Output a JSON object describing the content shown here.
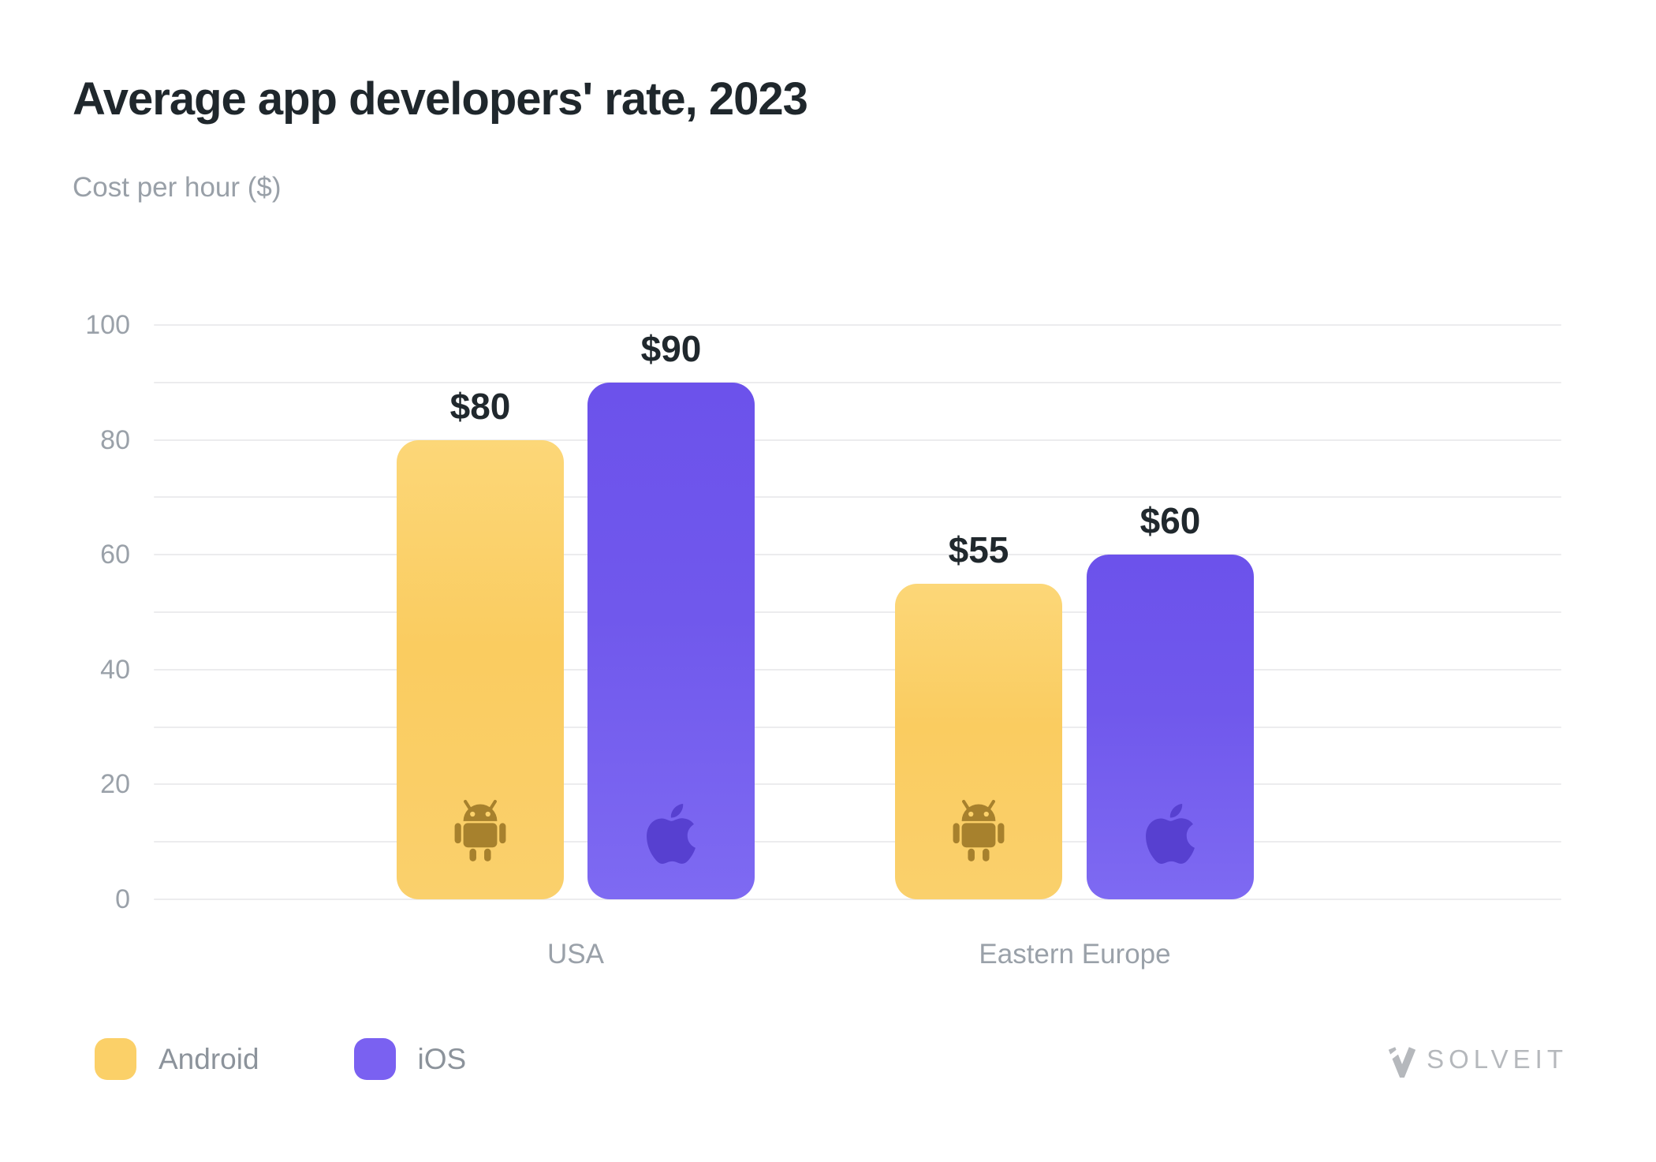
{
  "title": "Average app developers' rate, 2023",
  "subtitle": "Cost per hour ($)",
  "legend": [
    {
      "label": "Android",
      "color": "#fbd068"
    },
    {
      "label": "iOS",
      "color": "#7a61f1"
    }
  ],
  "watermark": {
    "name": "SOLVEIT"
  },
  "chart_data": {
    "type": "bar",
    "title": "Average app developers' rate, 2023",
    "ylabel": "Cost per hour ($)",
    "xlabel": "",
    "categories": [
      "USA",
      "Eastern Europe"
    ],
    "series": [
      {
        "name": "Android",
        "values": [
          80,
          55
        ],
        "value_labels": [
          "$80",
          "$55"
        ],
        "color": "#fbd16b",
        "gradient_top": "#fcd778",
        "gradient_mid": "#facc60",
        "gradient_bottom": "#fad06c",
        "icon": "android-icon",
        "icon_color": "#a7812d"
      },
      {
        "name": "iOS",
        "values": [
          90,
          60
        ],
        "value_labels": [
          "$90",
          "$60"
        ],
        "color": "#7560ee",
        "gradient_top": "#6c52eb",
        "gradient_mid": "#7058ec",
        "gradient_bottom": "#7e6af2",
        "icon": "apple-icon",
        "icon_color": "#5740d0"
      }
    ],
    "ylim": [
      0,
      100
    ],
    "yticks": [
      100,
      80,
      60,
      40,
      20,
      0
    ],
    "grid": "horizontal gridlines every 10 units",
    "legend_position": "bottom-left",
    "value_labels_shown": true
  }
}
